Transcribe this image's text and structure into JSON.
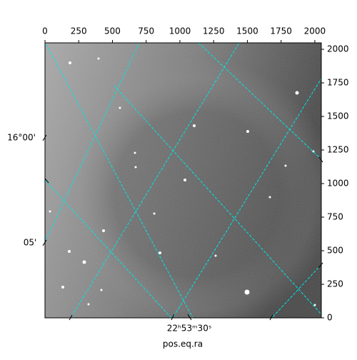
{
  "chart_data": {
    "type": "image",
    "xlabel": "pos.eq.ra",
    "xlim": [
      0,
      2048
    ],
    "xticks": [
      0,
      250,
      500,
      750,
      1000,
      1250,
      1500,
      1750,
      2000
    ],
    "ylim": [
      0,
      2048
    ],
    "yticks": [
      0,
      250,
      500,
      750,
      1000,
      1250,
      1500,
      1750,
      2000
    ],
    "dec_ticks": [
      "16°00'",
      "05'"
    ],
    "ra_ticks": [
      "22ʰ53ᵐ30ˢ"
    ],
    "grid_color": "#00e5e5"
  }
}
